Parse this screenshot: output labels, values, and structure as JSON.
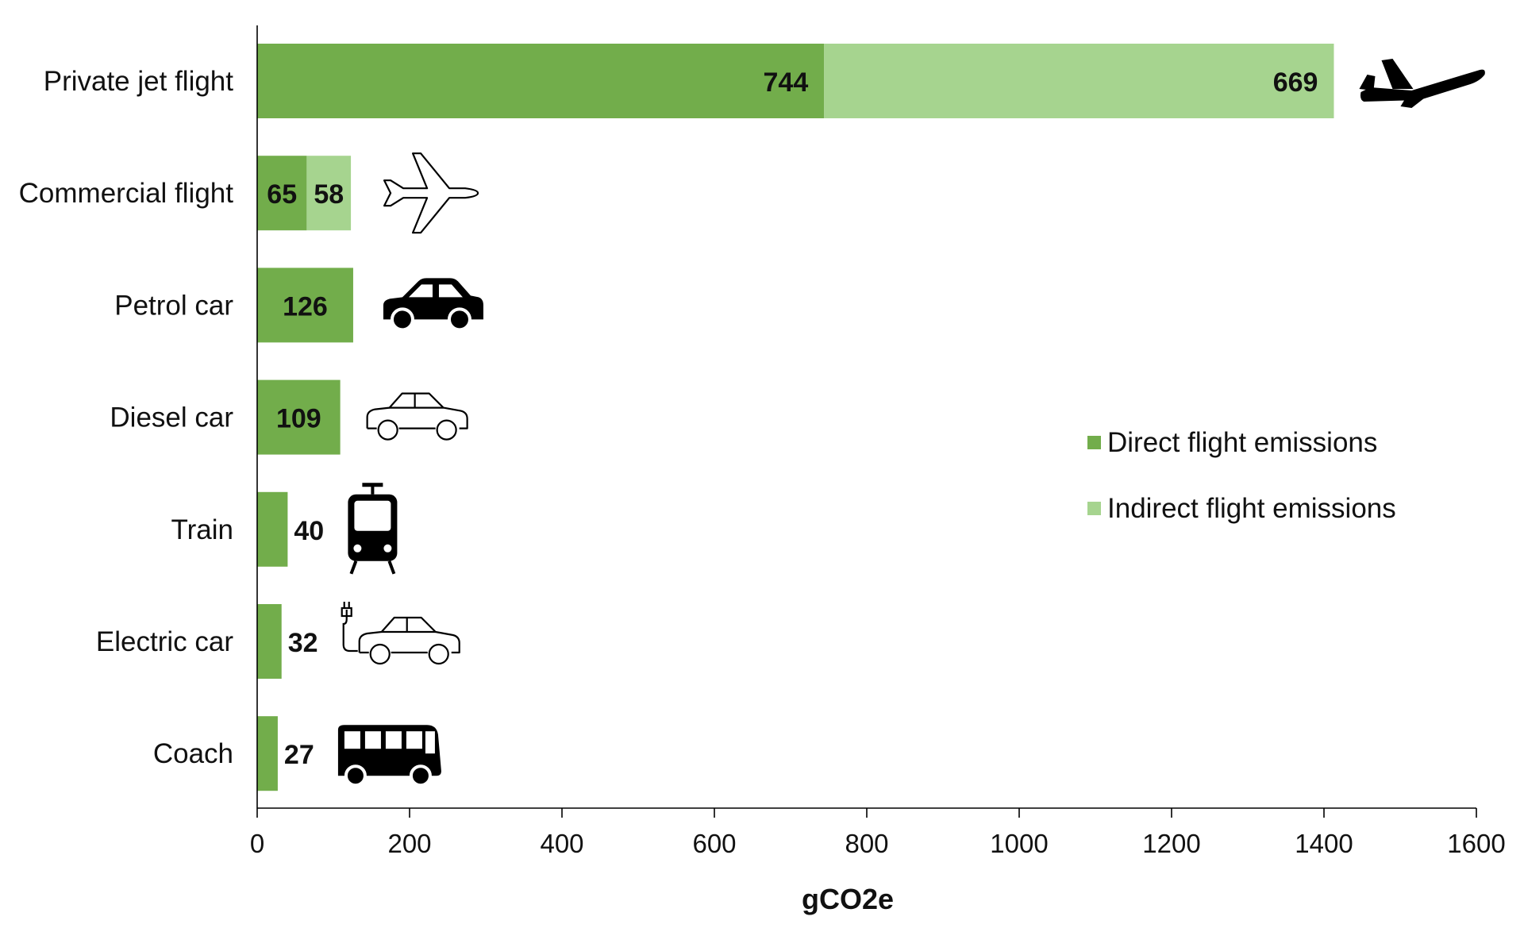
{
  "chart_data": {
    "type": "bar",
    "orientation": "horizontal",
    "stacked": true,
    "categories": [
      "Private jet flight",
      "Commercial flight",
      "Petrol car",
      "Diesel car",
      "Train",
      "Electric car",
      "Coach"
    ],
    "series": [
      {
        "name": "Direct flight emissions",
        "values": [
          744,
          65,
          126,
          109,
          40,
          32,
          27
        ],
        "color": "#72ad4b"
      },
      {
        "name": "Indirect flight emissions",
        "values": [
          669,
          58,
          0,
          0,
          0,
          0,
          0
        ],
        "color": "#a6d48f"
      }
    ],
    "icons": [
      "airplane-solid-icon",
      "airplane-outline-icon",
      "car-solid-icon",
      "car-outline-icon",
      "tram-icon",
      "electric-car-icon",
      "bus-icon"
    ],
    "xlabel": "gCO2e",
    "xlim": [
      0,
      1600
    ],
    "xticks": [
      0,
      200,
      400,
      600,
      800,
      1000,
      1200,
      1400,
      1600
    ],
    "grid": false,
    "legend_position": "right"
  }
}
